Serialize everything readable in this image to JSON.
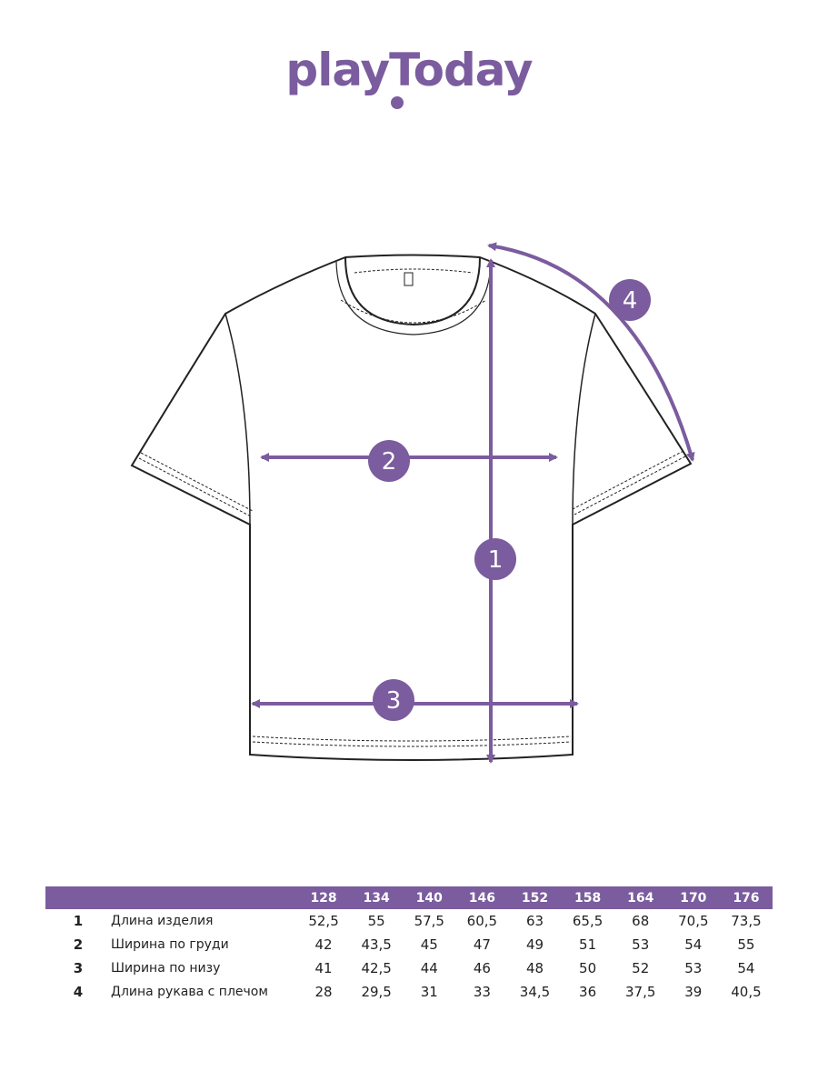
{
  "brand": {
    "logo_text": "playToday",
    "accent": "#7b5c9e"
  },
  "markers": [
    "1",
    "2",
    "3",
    "4"
  ],
  "table": {
    "sizes": [
      "128",
      "134",
      "140",
      "146",
      "152",
      "158",
      "164",
      "170",
      "176"
    ],
    "rows": [
      {
        "num": "1",
        "label": "Длина изделия",
        "values": [
          "52,5",
          "55",
          "57,5",
          "60,5",
          "63",
          "65,5",
          "68",
          "70,5",
          "73,5"
        ]
      },
      {
        "num": "2",
        "label": "Ширина по груди",
        "values": [
          "42",
          "43,5",
          "45",
          "47",
          "49",
          "51",
          "53",
          "54",
          "55"
        ]
      },
      {
        "num": "3",
        "label": "Ширина по низу",
        "values": [
          "41",
          "42,5",
          "44",
          "46",
          "48",
          "50",
          "52",
          "53",
          "54"
        ]
      },
      {
        "num": "4",
        "label": "Длина рукава с плечом",
        "values": [
          "28",
          "29,5",
          "31",
          "33",
          "34,5",
          "36",
          "37,5",
          "39",
          "40,5"
        ]
      }
    ]
  }
}
